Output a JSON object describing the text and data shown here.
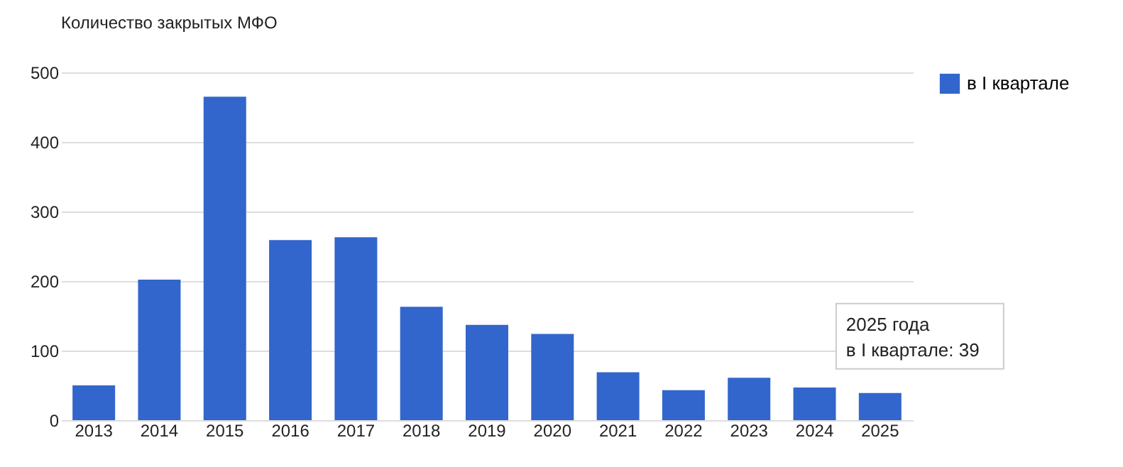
{
  "chart_data": {
    "type": "bar",
    "title": "Количество закрытых МФО",
    "categories": [
      "2013",
      "2014",
      "2015",
      "2016",
      "2017",
      "2018",
      "2019",
      "2020",
      "2021",
      "2022",
      "2023",
      "2024",
      "2025"
    ],
    "series": [
      {
        "name": "в I квартале",
        "color": "#3366cc",
        "values": [
          50,
          202,
          465,
          259,
          263,
          163,
          137,
          124,
          69,
          43,
          61,
          47,
          39
        ]
      }
    ],
    "ylim": [
      0,
      500
    ],
    "yticks": [
      0,
      100,
      200,
      300,
      400,
      500
    ],
    "grid": "y",
    "legend": "top right",
    "annotations": [
      {
        "text": "2025 года\nв I квартале: 39",
        "x": "2025",
        "y": 39
      }
    ]
  }
}
